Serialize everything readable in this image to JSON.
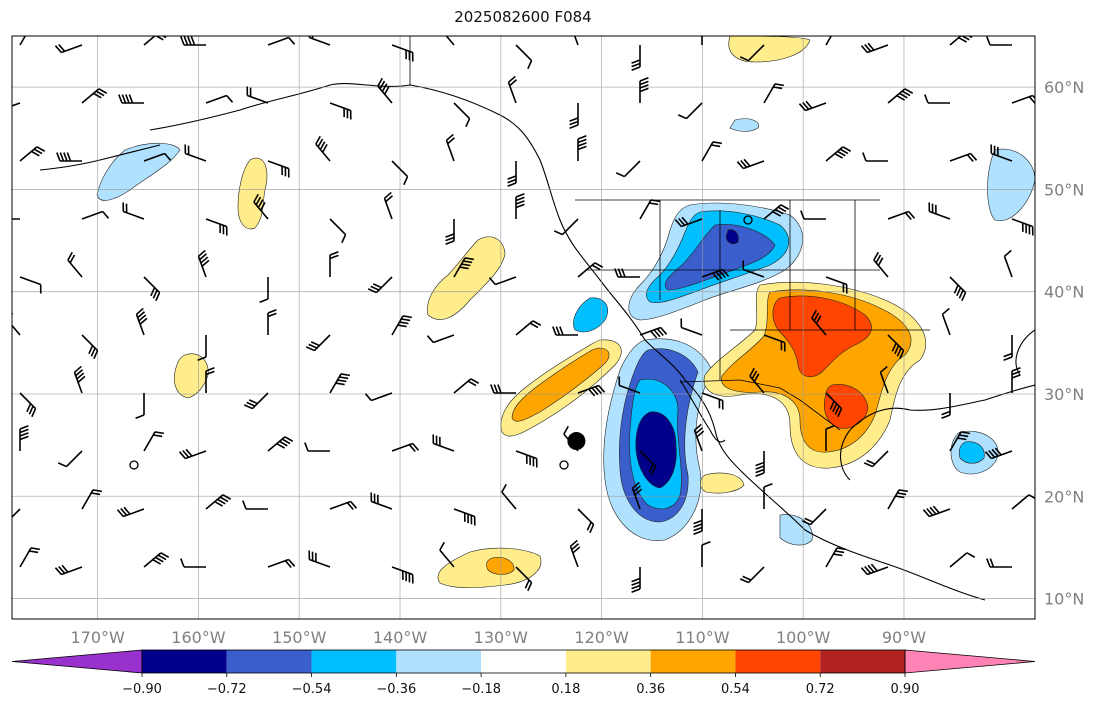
{
  "title": "2025082600 F084",
  "map": {
    "lon_range": [
      -178.5,
      -77
    ],
    "lat_range": [
      8,
      65
    ],
    "lon_ticks": [
      {
        "value": -170,
        "label": "170°W"
      },
      {
        "value": -160,
        "label": "160°W"
      },
      {
        "value": -150,
        "label": "150°W"
      },
      {
        "value": -140,
        "label": "140°W"
      },
      {
        "value": -130,
        "label": "130°W"
      },
      {
        "value": -120,
        "label": "120°W"
      },
      {
        "value": -110,
        "label": "110°W"
      },
      {
        "value": -100,
        "label": "100°W"
      },
      {
        "value": -90,
        "label": "90°W"
      }
    ],
    "lat_ticks": [
      {
        "value": 10,
        "label": "10°N"
      },
      {
        "value": 20,
        "label": "20°N"
      },
      {
        "value": 30,
        "label": "30°N"
      },
      {
        "value": 40,
        "label": "40°N"
      },
      {
        "value": 50,
        "label": "50°N"
      },
      {
        "value": 60,
        "label": "60°N"
      }
    ],
    "grid": true,
    "storm_center": {
      "lon": -122.5,
      "lat": 25.4
    }
  },
  "colorbar": {
    "colors": [
      "#9932cc",
      "#00008b",
      "#3a5fcd",
      "#00bfff",
      "#b0e2ff",
      "#ffffff",
      "#ffec8b",
      "#ffa500",
      "#ff4500",
      "#b22222",
      "#ff83b4"
    ],
    "boundaries": [
      -0.9,
      -0.72,
      -0.54,
      -0.36,
      -0.18,
      0.18,
      0.36,
      0.54,
      0.72,
      0.9
    ],
    "labels": [
      "−0.90",
      "−0.72",
      "−0.54",
      "−0.36",
      "−0.18",
      "0.18",
      "0.36",
      "0.54",
      "0.72",
      "0.90"
    ],
    "extend": "both"
  }
}
